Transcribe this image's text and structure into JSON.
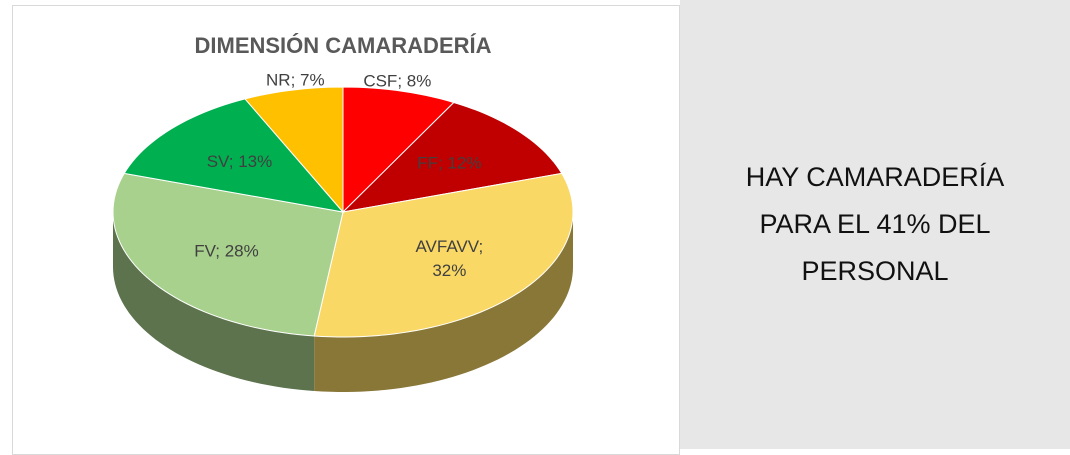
{
  "chart_data": {
    "type": "pie3d",
    "title": "DIMENSIÓN CAMARADERÍA",
    "values": [
      8,
      12,
      32,
      28,
      13,
      7
    ],
    "value_labels": [
      "CSF; 8%",
      "FF; 12%",
      "AVFAVV; 32%",
      "FV; 28%",
      "SV; 13%",
      "NR; 7%"
    ],
    "colors": [
      "#ff0000",
      "#c00000",
      "#f9d866",
      "#a9d18e",
      "#00b050",
      "#ffc000"
    ]
  },
  "note": "HAY CAMARADERÍA PARA EL 41% DEL PERSONAL"
}
